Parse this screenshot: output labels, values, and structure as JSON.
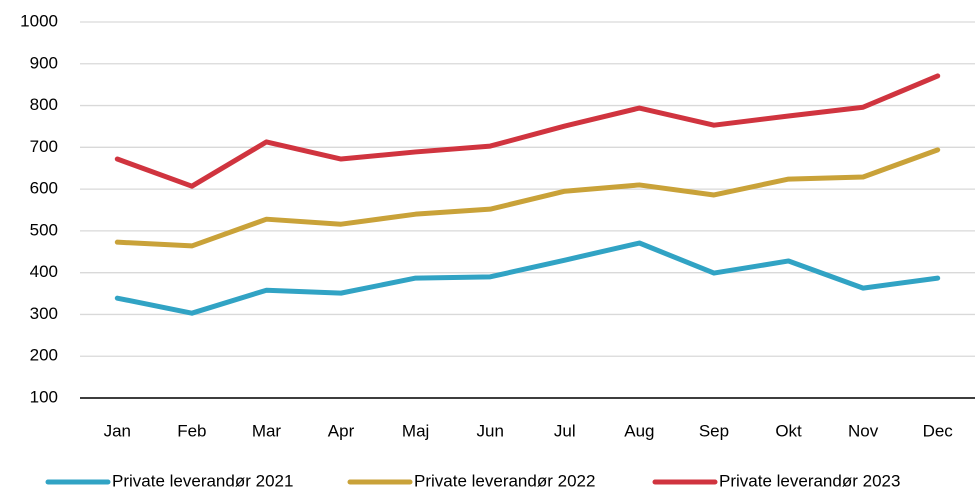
{
  "chart_data": {
    "type": "line",
    "categories": [
      "Jan",
      "Feb",
      "Mar",
      "Apr",
      "Maj",
      "Jun",
      "Jul",
      "Aug",
      "Sep",
      "Okt",
      "Nov",
      "Dec"
    ],
    "series": [
      {
        "name": "Private leverandør 2021",
        "color": "#31a3c4",
        "values": [
          339,
          303,
          358,
          351,
          387,
          390,
          430,
          471,
          399,
          428,
          363,
          387
        ]
      },
      {
        "name": "Private leverandør 2022",
        "color": "#c9a239",
        "values": [
          473,
          464,
          528,
          516,
          540,
          552,
          595,
          610,
          586,
          624,
          629,
          694
        ]
      },
      {
        "name": "Private leverandør 2023",
        "color": "#d0343f",
        "values": [
          672,
          607,
          713,
          672,
          689,
          703,
          751,
          794,
          753,
          775,
          796,
          871
        ]
      }
    ],
    "ylim": [
      100,
      1000
    ],
    "yticks": [
      100,
      200,
      300,
      400,
      500,
      600,
      700,
      800,
      900,
      1000
    ],
    "grid": true,
    "legend": "bottom"
  }
}
